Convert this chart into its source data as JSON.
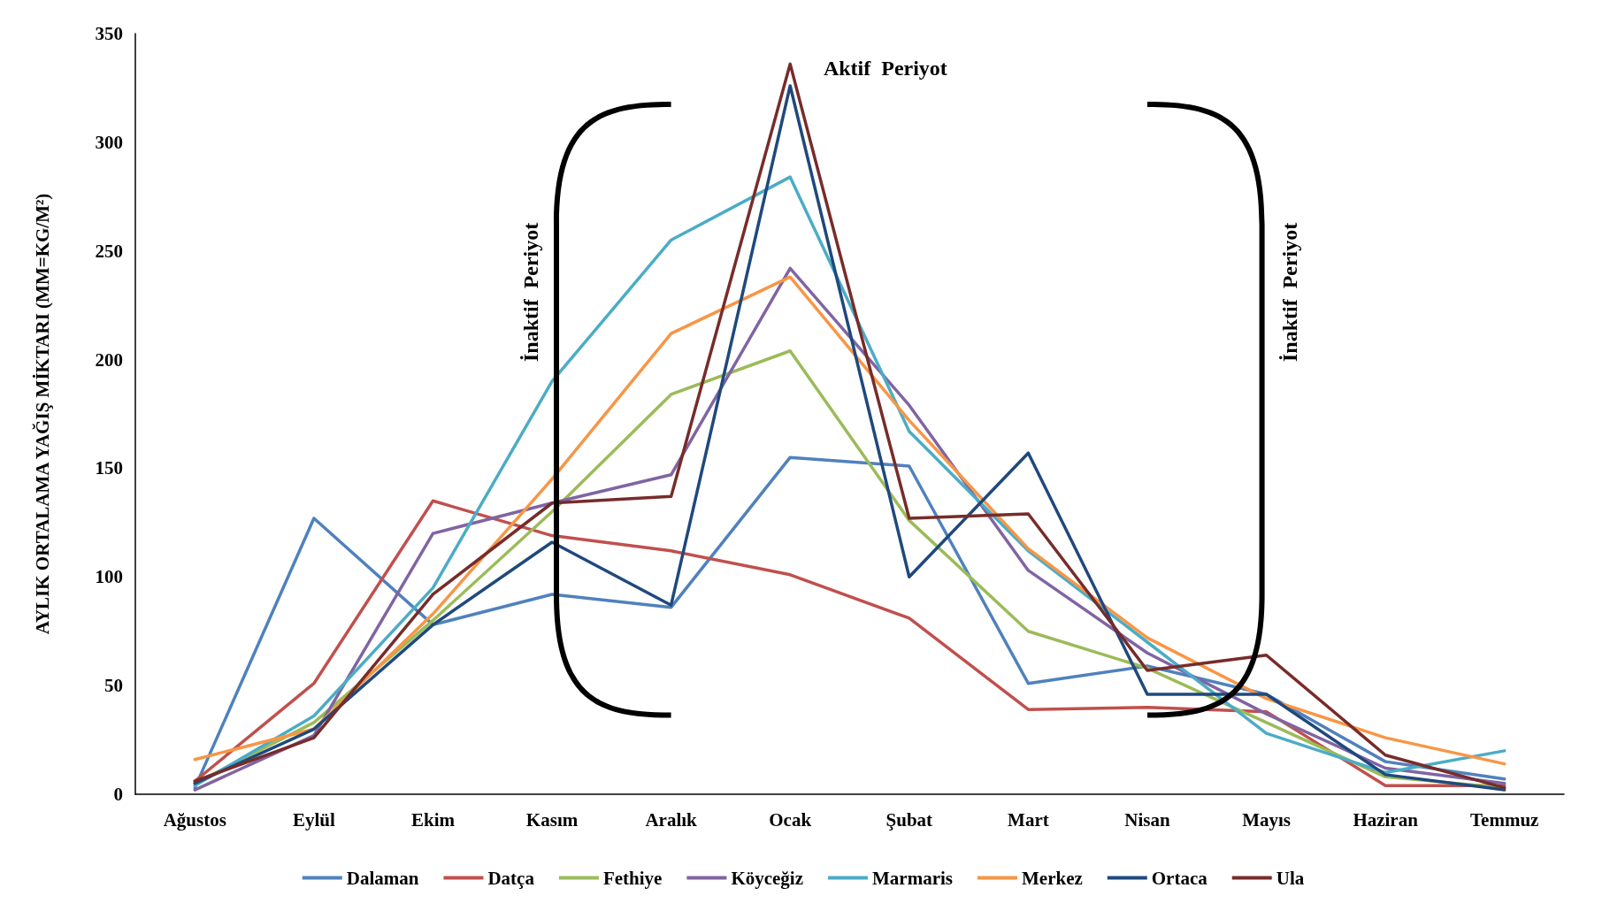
{
  "chart_data": {
    "type": "line",
    "ylabel": "AYLIK ORTALAMA YAĞIŞ MİKTARI (MM=KG/M²)",
    "categories": [
      "Ağustos",
      "Eylül",
      "Ekim",
      "Kasım",
      "Aralık",
      "Ocak",
      "Şubat",
      "Mart",
      "Nisan",
      "Mayıs",
      "Haziran",
      "Temmuz"
    ],
    "series": [
      {
        "name": "Dalaman",
        "color": "#4f81bd",
        "values": [
          3,
          127,
          78,
          92,
          86,
          155,
          151,
          51,
          59,
          46,
          15,
          7
        ]
      },
      {
        "name": "Datça",
        "color": "#c0504d",
        "values": [
          6,
          51,
          135,
          119,
          112,
          101,
          81,
          39,
          40,
          38,
          4,
          4
        ]
      },
      {
        "name": "Fethiye",
        "color": "#9bbb59",
        "values": [
          5,
          33,
          80,
          130,
          184,
          204,
          126,
          75,
          58,
          33,
          8,
          3
        ]
      },
      {
        "name": "Köyceğiz",
        "color": "#8064a2",
        "values": [
          2,
          27,
          120,
          134,
          147,
          242,
          179,
          103,
          65,
          37,
          12,
          5
        ]
      },
      {
        "name": "Marmaris",
        "color": "#4bacc6",
        "values": [
          4,
          36,
          95,
          190,
          255,
          284,
          167,
          112,
          70,
          28,
          10,
          20
        ]
      },
      {
        "name": "Merkez",
        "color": "#f79646",
        "values": [
          16,
          30,
          83,
          145,
          212,
          238,
          172,
          113,
          72,
          44,
          26,
          14
        ]
      },
      {
        "name": "Ortaca",
        "color": "#1f497d",
        "values": [
          5,
          30,
          78,
          116,
          87,
          326,
          100,
          157,
          46,
          46,
          9,
          2
        ]
      },
      {
        "name": "Ula",
        "color": "#772c2a",
        "values": [
          6,
          26,
          92,
          134,
          137,
          336,
          127,
          129,
          57,
          64,
          18,
          3
        ]
      }
    ],
    "ylim": [
      0,
      350
    ],
    "yticks": [
      0,
      50,
      100,
      150,
      200,
      250,
      300,
      350
    ],
    "annotations": [
      "Aktif  Periyot",
      "İnaktif  Periyot",
      "İnaktif  Periyot"
    ],
    "grid": false,
    "legend": "bottom",
    "marker": "none",
    "line_style": "solid"
  }
}
